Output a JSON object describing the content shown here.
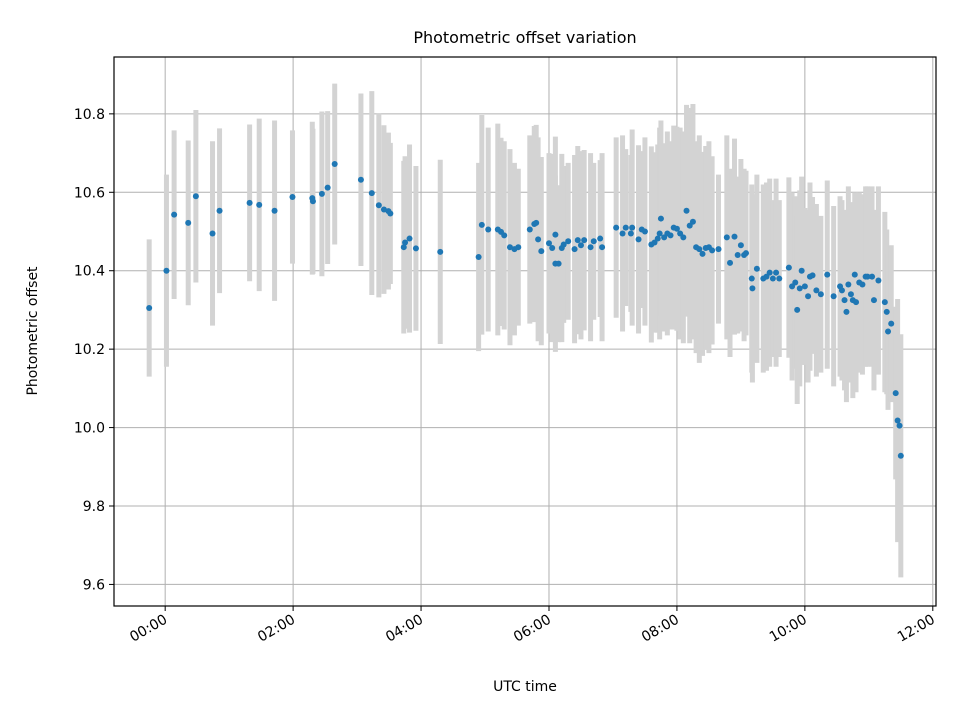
{
  "chart_data": {
    "type": "scatter",
    "title": "Photometric offset variation",
    "xlabel": "UTC time",
    "ylabel": "Photometric offset",
    "x_unit": "hours (UTC)",
    "xlim": [
      -0.8,
      12.05
    ],
    "ylim": [
      9.545,
      10.945
    ],
    "x_ticks": [
      0,
      2,
      4,
      6,
      8,
      10,
      12
    ],
    "x_tick_labels": [
      "00:00",
      "02:00",
      "04:00",
      "06:00",
      "08:00",
      "10:00",
      "12:00"
    ],
    "y_ticks": [
      9.6,
      9.8,
      10.0,
      10.2,
      10.4,
      10.6,
      10.8
    ],
    "y_tick_labels": [
      "9.6",
      "9.8",
      "10.0",
      "10.2",
      "10.4",
      "10.6",
      "10.8"
    ],
    "grid": true,
    "colors": {
      "marker": "#1f77b4",
      "errorbar": "#d3d3d3",
      "grid": "#b0b0b0",
      "axes": "#000000"
    },
    "points": [
      [
        -0.25,
        10.305,
        0.175
      ],
      [
        0.02,
        10.4,
        0.245
      ],
      [
        0.14,
        10.543,
        0.215
      ],
      [
        0.36,
        10.522,
        0.21
      ],
      [
        0.48,
        10.59,
        0.22
      ],
      [
        0.74,
        10.495,
        0.235
      ],
      [
        0.85,
        10.553,
        0.21
      ],
      [
        1.32,
        10.573,
        0.2
      ],
      [
        1.47,
        10.568,
        0.22
      ],
      [
        1.71,
        10.553,
        0.23
      ],
      [
        1.99,
        10.588,
        0.17
      ],
      [
        2.3,
        10.585,
        0.195
      ],
      [
        2.31,
        10.577,
        0.185
      ],
      [
        2.45,
        10.596,
        0.21
      ],
      [
        2.54,
        10.612,
        0.195
      ],
      [
        2.65,
        10.672,
        0.205
      ],
      [
        3.06,
        10.632,
        0.22
      ],
      [
        3.23,
        10.598,
        0.26
      ],
      [
        3.34,
        10.567,
        0.235
      ],
      [
        3.42,
        10.556,
        0.215
      ],
      [
        3.49,
        10.552,
        0.2
      ],
      [
        3.52,
        10.546,
        0.18
      ],
      [
        3.73,
        10.46,
        0.22
      ],
      [
        3.75,
        10.472,
        0.22
      ],
      [
        3.82,
        10.482,
        0.24
      ],
      [
        3.92,
        10.457,
        0.21
      ],
      [
        4.3,
        10.448,
        0.235
      ],
      [
        4.9,
        10.435,
        0.24
      ],
      [
        4.95,
        10.517,
        0.28
      ],
      [
        5.05,
        10.505,
        0.26
      ],
      [
        5.2,
        10.505,
        0.27
      ],
      [
        5.25,
        10.499,
        0.24
      ],
      [
        5.3,
        10.49,
        0.24
      ],
      [
        5.39,
        10.46,
        0.25
      ],
      [
        5.46,
        10.455,
        0.22
      ],
      [
        5.52,
        10.46,
        0.2
      ],
      [
        5.7,
        10.505,
        0.24
      ],
      [
        5.77,
        10.519,
        0.25
      ],
      [
        5.8,
        10.522,
        0.25
      ],
      [
        5.83,
        10.48,
        0.26
      ],
      [
        5.88,
        10.45,
        0.24
      ],
      [
        6.0,
        10.47,
        0.23
      ],
      [
        6.05,
        10.458,
        0.24
      ],
      [
        6.1,
        10.418,
        0.225
      ],
      [
        6.1,
        10.492,
        0.25
      ],
      [
        6.15,
        10.418,
        0.2
      ],
      [
        6.2,
        10.458,
        0.24
      ],
      [
        6.23,
        10.467,
        0.2
      ],
      [
        6.3,
        10.475,
        0.2
      ],
      [
        6.4,
        10.455,
        0.24
      ],
      [
        6.45,
        10.478,
        0.24
      ],
      [
        6.5,
        10.465,
        0.24
      ],
      [
        6.55,
        10.478,
        0.23
      ],
      [
        6.65,
        10.46,
        0.24
      ],
      [
        6.7,
        10.475,
        0.2
      ],
      [
        6.8,
        10.482,
        0.2
      ],
      [
        6.83,
        10.46,
        0.24
      ],
      [
        7.05,
        10.51,
        0.23
      ],
      [
        7.15,
        10.495,
        0.25
      ],
      [
        7.2,
        10.51,
        0.2
      ],
      [
        7.28,
        10.495,
        0.2
      ],
      [
        7.3,
        10.51,
        0.25
      ],
      [
        7.4,
        10.48,
        0.24
      ],
      [
        7.45,
        10.505,
        0.2
      ],
      [
        7.5,
        10.5,
        0.24
      ],
      [
        7.6,
        10.467,
        0.25
      ],
      [
        7.65,
        10.472,
        0.23
      ],
      [
        7.7,
        10.482,
        0.24
      ],
      [
        7.73,
        10.495,
        0.27
      ],
      [
        7.75,
        10.533,
        0.25
      ],
      [
        7.8,
        10.485,
        0.24
      ],
      [
        7.85,
        10.495,
        0.26
      ],
      [
        7.9,
        10.49,
        0.24
      ],
      [
        7.95,
        10.51,
        0.26
      ],
      [
        8.0,
        10.507,
        0.26
      ],
      [
        8.05,
        10.495,
        0.27
      ],
      [
        8.1,
        10.485,
        0.27
      ],
      [
        8.15,
        10.553,
        0.27
      ],
      [
        8.2,
        10.515,
        0.3
      ],
      [
        8.25,
        10.525,
        0.3
      ],
      [
        8.3,
        10.46,
        0.27
      ],
      [
        8.35,
        10.455,
        0.29
      ],
      [
        8.4,
        10.443,
        0.26
      ],
      [
        8.45,
        10.458,
        0.26
      ],
      [
        8.5,
        10.46,
        0.27
      ],
      [
        8.55,
        10.452,
        0.24
      ],
      [
        8.65,
        10.455,
        0.19
      ],
      [
        8.78,
        10.485,
        0.26
      ],
      [
        8.83,
        10.42,
        0.24
      ],
      [
        8.9,
        10.487,
        0.25
      ],
      [
        8.95,
        10.44,
        0.2
      ],
      [
        9.0,
        10.465,
        0.22
      ],
      [
        9.05,
        10.44,
        0.22
      ],
      [
        9.08,
        10.445,
        0.21
      ],
      [
        9.17,
        10.38,
        0.24
      ],
      [
        9.18,
        10.355,
        0.24
      ],
      [
        9.25,
        10.405,
        0.24
      ],
      [
        9.35,
        10.38,
        0.24
      ],
      [
        9.4,
        10.385,
        0.24
      ],
      [
        9.45,
        10.395,
        0.24
      ],
      [
        9.5,
        10.38,
        0.2
      ],
      [
        9.55,
        10.395,
        0.24
      ],
      [
        9.6,
        10.38,
        0.2
      ],
      [
        9.75,
        10.408,
        0.23
      ],
      [
        9.8,
        10.36,
        0.24
      ],
      [
        9.85,
        10.37,
        0.22
      ],
      [
        9.88,
        10.3,
        0.24
      ],
      [
        9.92,
        10.355,
        0.25
      ],
      [
        9.95,
        10.4,
        0.24
      ],
      [
        10.0,
        10.36,
        0.2
      ],
      [
        10.05,
        10.335,
        0.22
      ],
      [
        10.08,
        10.385,
        0.24
      ],
      [
        10.12,
        10.388,
        0.2
      ],
      [
        10.18,
        10.35,
        0.22
      ],
      [
        10.25,
        10.34,
        0.2
      ],
      [
        10.35,
        10.39,
        0.24
      ],
      [
        10.45,
        10.335,
        0.23
      ],
      [
        10.55,
        10.36,
        0.23
      ],
      [
        10.58,
        10.35,
        0.23
      ],
      [
        10.62,
        10.325,
        0.23
      ],
      [
        10.65,
        10.295,
        0.23
      ],
      [
        10.68,
        10.365,
        0.25
      ],
      [
        10.72,
        10.34,
        0.2
      ],
      [
        10.75,
        10.325,
        0.25
      ],
      [
        10.78,
        10.39,
        0.21
      ],
      [
        10.8,
        10.32,
        0.23
      ],
      [
        10.85,
        10.37,
        0.23
      ],
      [
        10.9,
        10.365,
        0.23
      ],
      [
        10.95,
        10.385,
        0.23
      ],
      [
        10.98,
        10.385,
        0.23
      ],
      [
        11.05,
        10.385,
        0.23
      ],
      [
        11.08,
        10.325,
        0.23
      ],
      [
        11.15,
        10.375,
        0.24
      ],
      [
        11.25,
        10.32,
        0.23
      ],
      [
        11.28,
        10.295,
        0.21
      ],
      [
        11.3,
        10.245,
        0.2
      ],
      [
        11.35,
        10.265,
        0.2
      ],
      [
        11.42,
        10.088,
        0.22
      ],
      [
        11.45,
        10.018,
        0.31
      ],
      [
        11.48,
        10.005,
        0.22
      ],
      [
        11.5,
        9.928,
        0.31
      ]
    ]
  }
}
